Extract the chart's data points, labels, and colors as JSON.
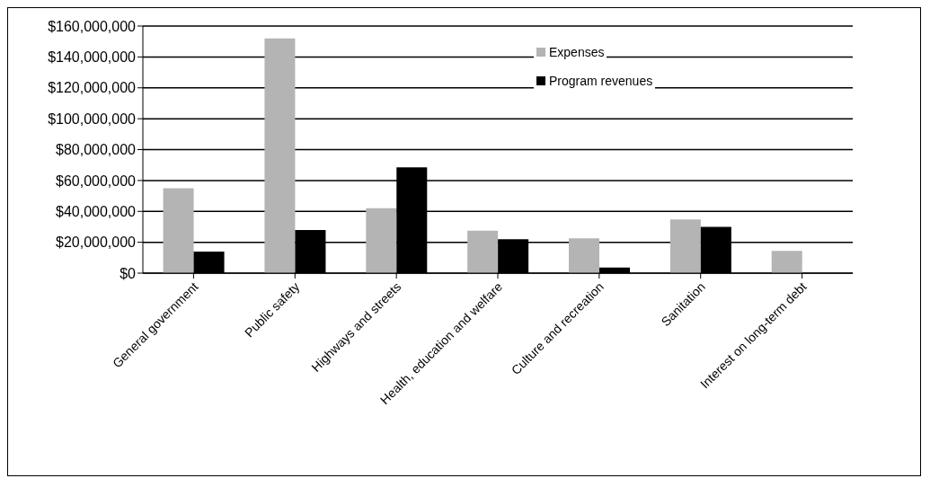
{
  "chart_data": {
    "type": "bar",
    "categories": [
      "General government",
      "Public safety",
      "Highways and streets",
      "Health, education and welfare",
      "Culture and recreation",
      "Sanitation",
      "Interest on long-term debt"
    ],
    "series": [
      {
        "name": "Expenses",
        "color": "#b4b4b4",
        "values": [
          55000000,
          152000000,
          42000000,
          27500000,
          22500000,
          34700000,
          14400000
        ]
      },
      {
        "name": "Program revenues",
        "color": "#000000",
        "values": [
          14000000,
          28000000,
          68500000,
          22000000,
          3700000,
          30000000,
          null
        ]
      }
    ],
    "ylim": [
      0,
      160000000
    ],
    "yticks": [
      {
        "value": 0,
        "label": "$0"
      },
      {
        "value": 20000000,
        "label": "$20,000,000"
      },
      {
        "value": 40000000,
        "label": "$40,000,000"
      },
      {
        "value": 60000000,
        "label": "$60,000,000"
      },
      {
        "value": 80000000,
        "label": "$80,000,000"
      },
      {
        "value": 100000000,
        "label": "$100,000,000"
      },
      {
        "value": 120000000,
        "label": "$120,000,000"
      },
      {
        "value": 140000000,
        "label": "$140,000,000"
      },
      {
        "value": 160000000,
        "label": "$160,000,000"
      }
    ],
    "grid": "y",
    "legend": "top right"
  }
}
